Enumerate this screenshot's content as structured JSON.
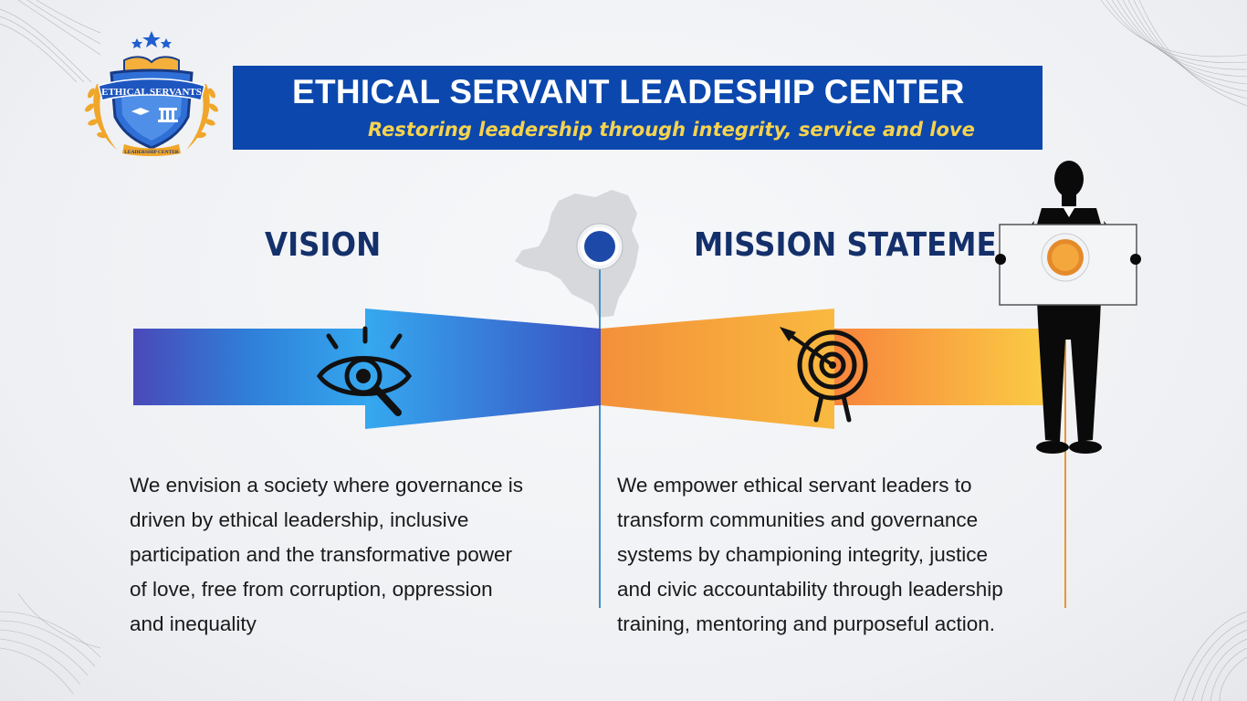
{
  "header": {
    "title": "ETHICAL SERVANT LEADESHIP CENTER",
    "subtitle": "Restoring leadership through integrity, service and love"
  },
  "logo": {
    "banner_text": "ETHICAL SERVANTS",
    "bottom_text": "LEADERSHIP CENTER"
  },
  "vision": {
    "title": "VISION",
    "icon": "eye-search-icon",
    "lines": [
      "We envision a society where governance is",
      "driven by ethical leadership, inclusive",
      "participation and the transformative power",
      "of love, free from corruption, oppression",
      "and inequality"
    ]
  },
  "mission": {
    "title": "MISSION STATEMENT",
    "icon": "target-arrow-icon",
    "lines": [
      "We empower ethical servant leaders to",
      "transform communities and governance",
      "systems by championing integrity, justice",
      "and civic accountability through leadership",
      "training, mentoring and purposeful action."
    ]
  },
  "colors": {
    "banner": "#0b47ad",
    "subtitle": "#f6d34e",
    "title": "#14306b",
    "vision_blue": "#3a66c7",
    "mission_orange": "#f6a53a"
  }
}
